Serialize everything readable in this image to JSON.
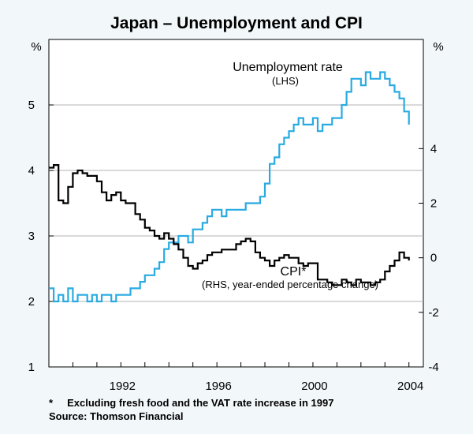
{
  "chart_data": {
    "type": "line",
    "title": "Japan – Unemployment and CPI",
    "left_axis": {
      "unit": "%",
      "ylim": [
        1,
        6
      ],
      "ticks": [
        "1",
        "2",
        "3",
        "4",
        "5"
      ],
      "tick_values": [
        1,
        2,
        3,
        4,
        5
      ]
    },
    "right_axis": {
      "unit": "%",
      "ylim": [
        -4,
        8
      ],
      "ticks": [
        "-4",
        "-2",
        "0",
        "2",
        "4"
      ],
      "tick_values": [
        -4,
        -2,
        0,
        2,
        4
      ]
    },
    "x_axis": {
      "xlim": [
        1989.0,
        2004.6
      ],
      "ticks": [
        "1992",
        "1996",
        "2000",
        "2004"
      ],
      "tick_values": [
        1992,
        1996,
        2000,
        2004
      ]
    },
    "series": [
      {
        "name": "Unemployment rate",
        "axis": "left",
        "color": "#29abe2",
        "label": "Unemployment rate",
        "sublabel": "(LHS)",
        "x": [
          1989.0,
          1989.2,
          1989.4,
          1989.6,
          1989.8,
          1990.0,
          1990.2,
          1990.4,
          1990.6,
          1990.8,
          1991.0,
          1991.2,
          1991.4,
          1991.6,
          1991.8,
          1992.0,
          1992.2,
          1992.4,
          1992.6,
          1992.8,
          1993.0,
          1993.2,
          1993.4,
          1993.6,
          1993.8,
          1994.0,
          1994.2,
          1994.4,
          1994.6,
          1994.8,
          1995.0,
          1995.2,
          1995.4,
          1995.6,
          1995.8,
          1996.0,
          1996.2,
          1996.4,
          1996.6,
          1996.8,
          1997.0,
          1997.2,
          1997.4,
          1997.6,
          1997.8,
          1998.0,
          1998.2,
          1998.4,
          1998.6,
          1998.8,
          1999.0,
          1999.2,
          1999.4,
          1999.6,
          1999.8,
          2000.0,
          2000.2,
          2000.4,
          2000.6,
          2000.8,
          2001.0,
          2001.2,
          2001.4,
          2001.6,
          2001.8,
          2002.0,
          2002.2,
          2002.4,
          2002.6,
          2002.8,
          2003.0,
          2003.2,
          2003.4,
          2003.6,
          2003.8,
          2004.0
        ],
        "values": [
          2.2,
          2.0,
          2.1,
          2.0,
          2.2,
          2.0,
          2.1,
          2.1,
          2.0,
          2.1,
          2.0,
          2.1,
          2.1,
          2.0,
          2.1,
          2.1,
          2.1,
          2.2,
          2.2,
          2.3,
          2.4,
          2.4,
          2.5,
          2.6,
          2.8,
          2.9,
          2.9,
          3.0,
          3.0,
          2.9,
          3.1,
          3.1,
          3.2,
          3.3,
          3.4,
          3.4,
          3.3,
          3.4,
          3.4,
          3.4,
          3.4,
          3.5,
          3.5,
          3.5,
          3.6,
          3.8,
          4.1,
          4.2,
          4.4,
          4.5,
          4.6,
          4.7,
          4.8,
          4.7,
          4.7,
          4.8,
          4.6,
          4.7,
          4.7,
          4.8,
          4.8,
          5.0,
          5.2,
          5.4,
          5.4,
          5.3,
          5.5,
          5.4,
          5.4,
          5.5,
          5.4,
          5.3,
          5.2,
          5.1,
          4.9,
          4.7
        ]
      },
      {
        "name": "CPI*",
        "axis": "right",
        "color": "#000000",
        "label": "CPI*",
        "sublabel": "(RHS, year-ended percentage change)",
        "x": [
          1989.0,
          1989.2,
          1989.4,
          1989.6,
          1989.8,
          1990.0,
          1990.2,
          1990.4,
          1990.6,
          1990.8,
          1991.0,
          1991.2,
          1991.4,
          1991.6,
          1991.8,
          1992.0,
          1992.2,
          1992.4,
          1992.6,
          1992.8,
          1993.0,
          1993.2,
          1993.4,
          1993.6,
          1993.8,
          1994.0,
          1994.2,
          1994.4,
          1994.6,
          1994.8,
          1995.0,
          1995.2,
          1995.4,
          1995.6,
          1995.8,
          1996.0,
          1996.2,
          1996.4,
          1996.6,
          1996.8,
          1997.0,
          1997.2,
          1997.4,
          1997.6,
          1997.8,
          1998.0,
          1998.2,
          1998.4,
          1998.6,
          1998.8,
          1999.0,
          1999.2,
          1999.4,
          1999.6,
          1999.8,
          2000.0,
          2000.2,
          2000.4,
          2000.6,
          2000.8,
          2001.0,
          2001.2,
          2001.4,
          2001.6,
          2001.8,
          2002.0,
          2002.2,
          2002.4,
          2002.6,
          2002.8,
          2003.0,
          2003.2,
          2003.4,
          2003.6,
          2003.8,
          2004.0
        ],
        "values": [
          3.3,
          3.4,
          2.1,
          2.0,
          2.6,
          3.1,
          3.2,
          3.1,
          3.0,
          3.0,
          2.8,
          2.4,
          2.1,
          2.3,
          2.4,
          2.1,
          2.0,
          2.0,
          1.6,
          1.4,
          1.1,
          1.0,
          0.8,
          0.7,
          0.9,
          0.7,
          0.5,
          0.3,
          0.0,
          -0.3,
          -0.4,
          -0.2,
          -0.1,
          0.1,
          0.2,
          0.2,
          0.3,
          0.3,
          0.3,
          0.5,
          0.6,
          0.7,
          0.6,
          0.2,
          0.0,
          -0.1,
          -0.3,
          -0.1,
          0.0,
          0.1,
          0.0,
          0.0,
          -0.2,
          -0.3,
          -0.2,
          -0.2,
          -0.8,
          -0.8,
          -0.9,
          -1.0,
          -1.0,
          -0.8,
          -0.9,
          -1.0,
          -0.8,
          -0.9,
          -0.9,
          -1.0,
          -0.9,
          -0.8,
          -0.5,
          -0.3,
          -0.1,
          0.2,
          0.0,
          -0.1
        ]
      }
    ],
    "footnote": "*     Excluding fresh food and the VAT rate increase in 1997",
    "source": "Source: Thomson Financial"
  }
}
